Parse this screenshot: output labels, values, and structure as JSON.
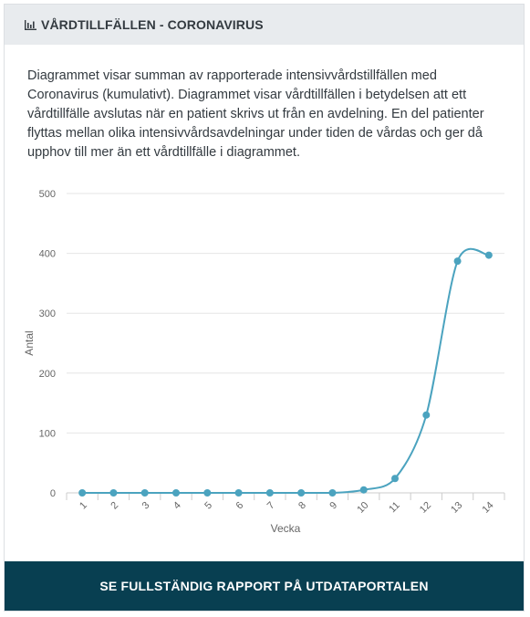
{
  "header": {
    "title": "VÅRDTILLFÄLLEN - CORONAVIRUS",
    "icon": "bar-chart-icon"
  },
  "description": "Diagrammet visar summan av rapporterade intensivvårdstillfällen med Coronavirus (kumulativt). Diagrammet visar vårdtillfällen i betydelsen att ett vårdtillfälle avslutas när en patient skrivs ut från en avdelning. En del patienter flyttas mellan olika intensivvårdsavdelningar under tiden de vårdas och ger då upphov till mer än ett vårdtillfälle i diagrammet.",
  "chart_data": {
    "type": "line",
    "categories": [
      "1",
      "2",
      "3",
      "4",
      "5",
      "6",
      "7",
      "8",
      "9",
      "10",
      "11",
      "12",
      "13",
      "14"
    ],
    "values": [
      0,
      0,
      0,
      0,
      0,
      0,
      0,
      0,
      0,
      5,
      24,
      130,
      387,
      397
    ],
    "xlabel": "Vecka",
    "ylabel": "Antal",
    "ylim": [
      0,
      500
    ],
    "yticks": [
      0,
      100,
      200,
      300,
      400,
      500
    ],
    "grid": true,
    "color": "#4ba3bf"
  },
  "footer": {
    "button_label": "SE FULLSTÄNDIG RAPPORT PÅ UTDATAPORTALEN"
  }
}
